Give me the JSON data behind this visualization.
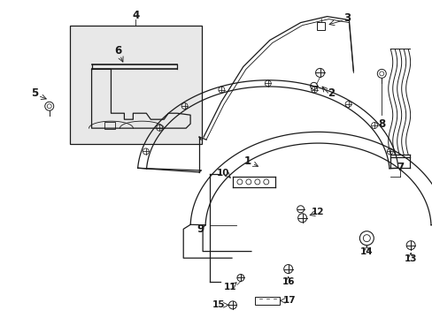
{
  "background_color": "#ffffff",
  "fig_width": 4.89,
  "fig_height": 3.6,
  "dpi": 100,
  "line_color": "#1a1a1a",
  "box_fill": "#e8e8e8",
  "font_size": 8.5
}
